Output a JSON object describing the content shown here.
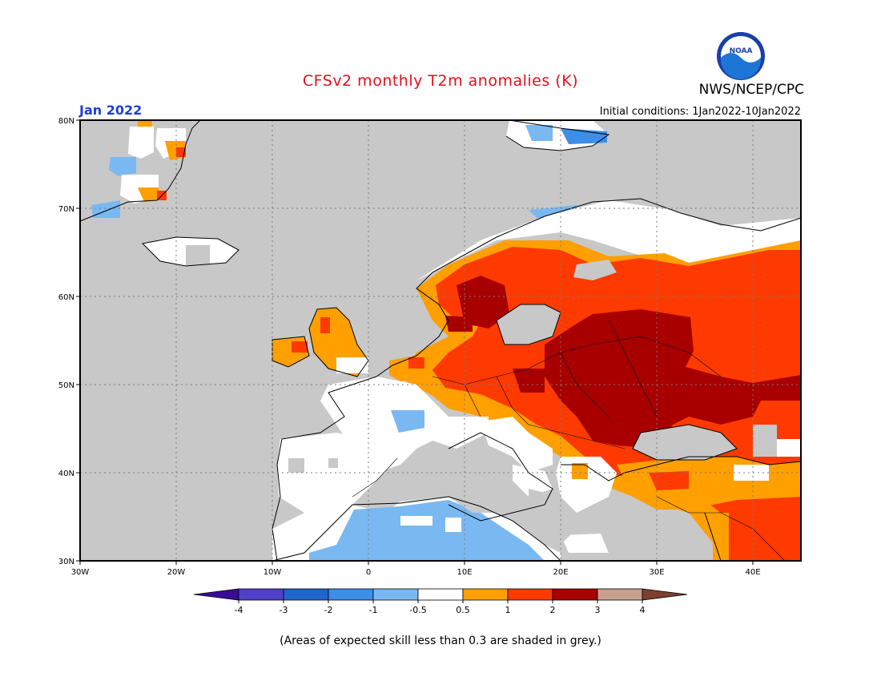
{
  "title": "CFSv2 monthly T2m anomalies (K)",
  "organization": "NWS/NCEP/CPC",
  "logo_text": "NOAA",
  "month": "Jan 2022",
  "initial_conditions": "Initial conditions: 1Jan2022-10Jan2022",
  "footnote": "(Areas of expected skill less than 0.3 are shaded in grey.)",
  "lat_labels": [
    "80N",
    "70N",
    "60N",
    "50N",
    "40N",
    "30N"
  ],
  "lon_labels": [
    "30W",
    "20W",
    "10W",
    "0",
    "10E",
    "20E",
    "30E",
    "40E"
  ],
  "colorbar": {
    "ticks": [
      "-4",
      "-3",
      "-2",
      "-1",
      "-0.5",
      "0.5",
      "1",
      "2",
      "3",
      "4"
    ],
    "colors": [
      "#3a0a9a",
      "#5040c8",
      "#1e66cc",
      "#3e8ee8",
      "#7ab8f2",
      "#ffffff",
      "#ff9f00",
      "#ff3a00",
      "#a80000",
      "#c9a090",
      "#7a4030"
    ]
  },
  "colors": {
    "land_low_skill": "#c8c8c8",
    "ocean": "#c8c8c8",
    "neutral": "#ffffff",
    "warm_0_5_1": "#ff9f00",
    "warm_1_2": "#ff3a00",
    "warm_2_3": "#a80000",
    "cool_neg0_5_neg1": "#7ab8f2",
    "title_red": "#e0101a",
    "month_blue": "#1f3fd1"
  }
}
